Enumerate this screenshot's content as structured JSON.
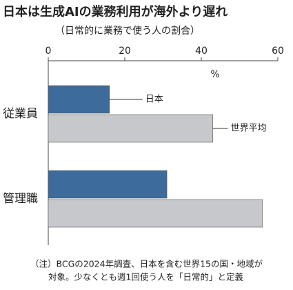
{
  "chart_data": {
    "type": "barh",
    "title": "日本は生成AIの業務利用が海外より遅れ",
    "subtitle": "（日常的に業務で使う人の割合）",
    "unit_label": "%",
    "categories": [
      "従業員",
      "管理職"
    ],
    "series": [
      {
        "name": "日本",
        "color": "#3d6b9c",
        "values": [
          16,
          31
        ]
      },
      {
        "name": "世界平均",
        "color": "#c6c8cc",
        "values": [
          43,
          56
        ]
      }
    ],
    "xlim": [
      0,
      60
    ],
    "xticks": [
      0,
      20,
      40,
      60
    ],
    "note_lines": [
      "（注）BCGの2024年調査、日本を含む世界15の国・地域が",
      "対象。少なくとも週1回使う人を「日常的」と定義"
    ]
  }
}
